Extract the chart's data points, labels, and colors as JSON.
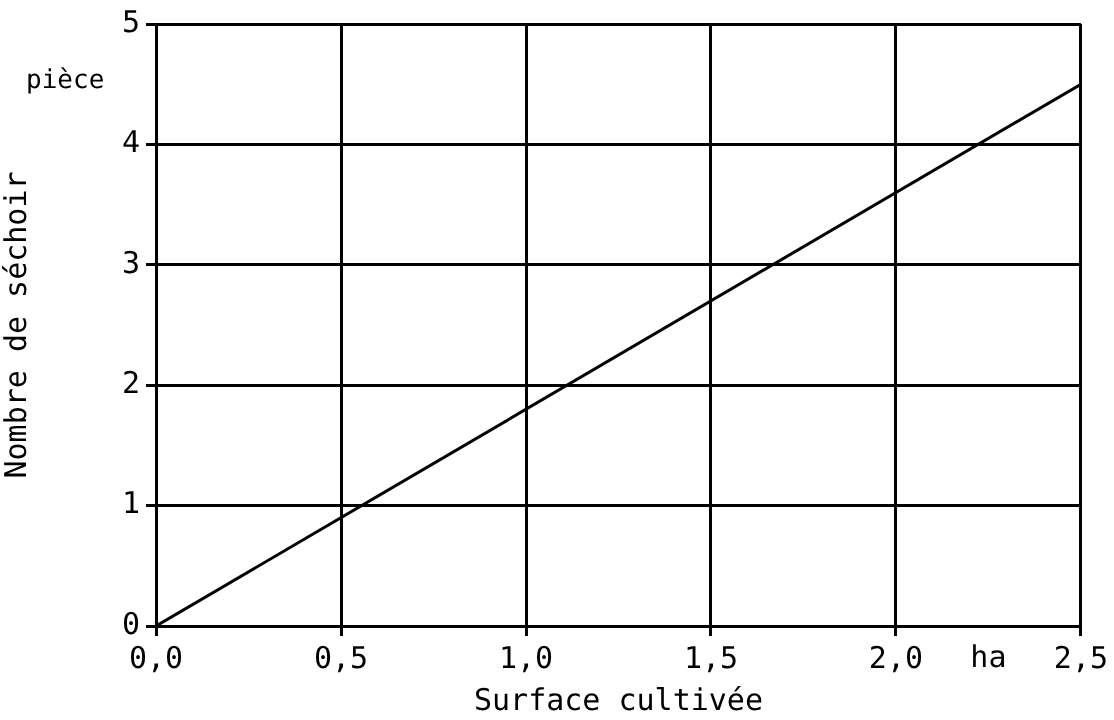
{
  "chart_data": {
    "type": "line",
    "xlabel": "Surface cultivée",
    "ylabel": "Nombre de séchoir",
    "x": [
      0,
      2.5
    ],
    "series": [
      {
        "color": "#000000",
        "values": [
          0,
          4.5
        ]
      }
    ],
    "xlim": [
      0,
      2.5
    ],
    "ylim": [
      0,
      5
    ],
    "xticks": [
      {
        "value": 0,
        "label": "0,0"
      },
      {
        "value": 0.5,
        "label": "0,5"
      },
      {
        "value": 1,
        "label": "1,0"
      },
      {
        "value": 1.5,
        "label": "1,5"
      },
      {
        "value": 2,
        "label": "2,0"
      },
      {
        "value": 2.5,
        "label": "2,5"
      }
    ],
    "yticks": [
      0,
      1,
      2,
      3,
      4,
      5
    ],
    "annotations": [
      "ha",
      "pièce"
    ],
    "grid": true,
    "legend": false,
    "marker": "none",
    "line_style": "solid"
  }
}
